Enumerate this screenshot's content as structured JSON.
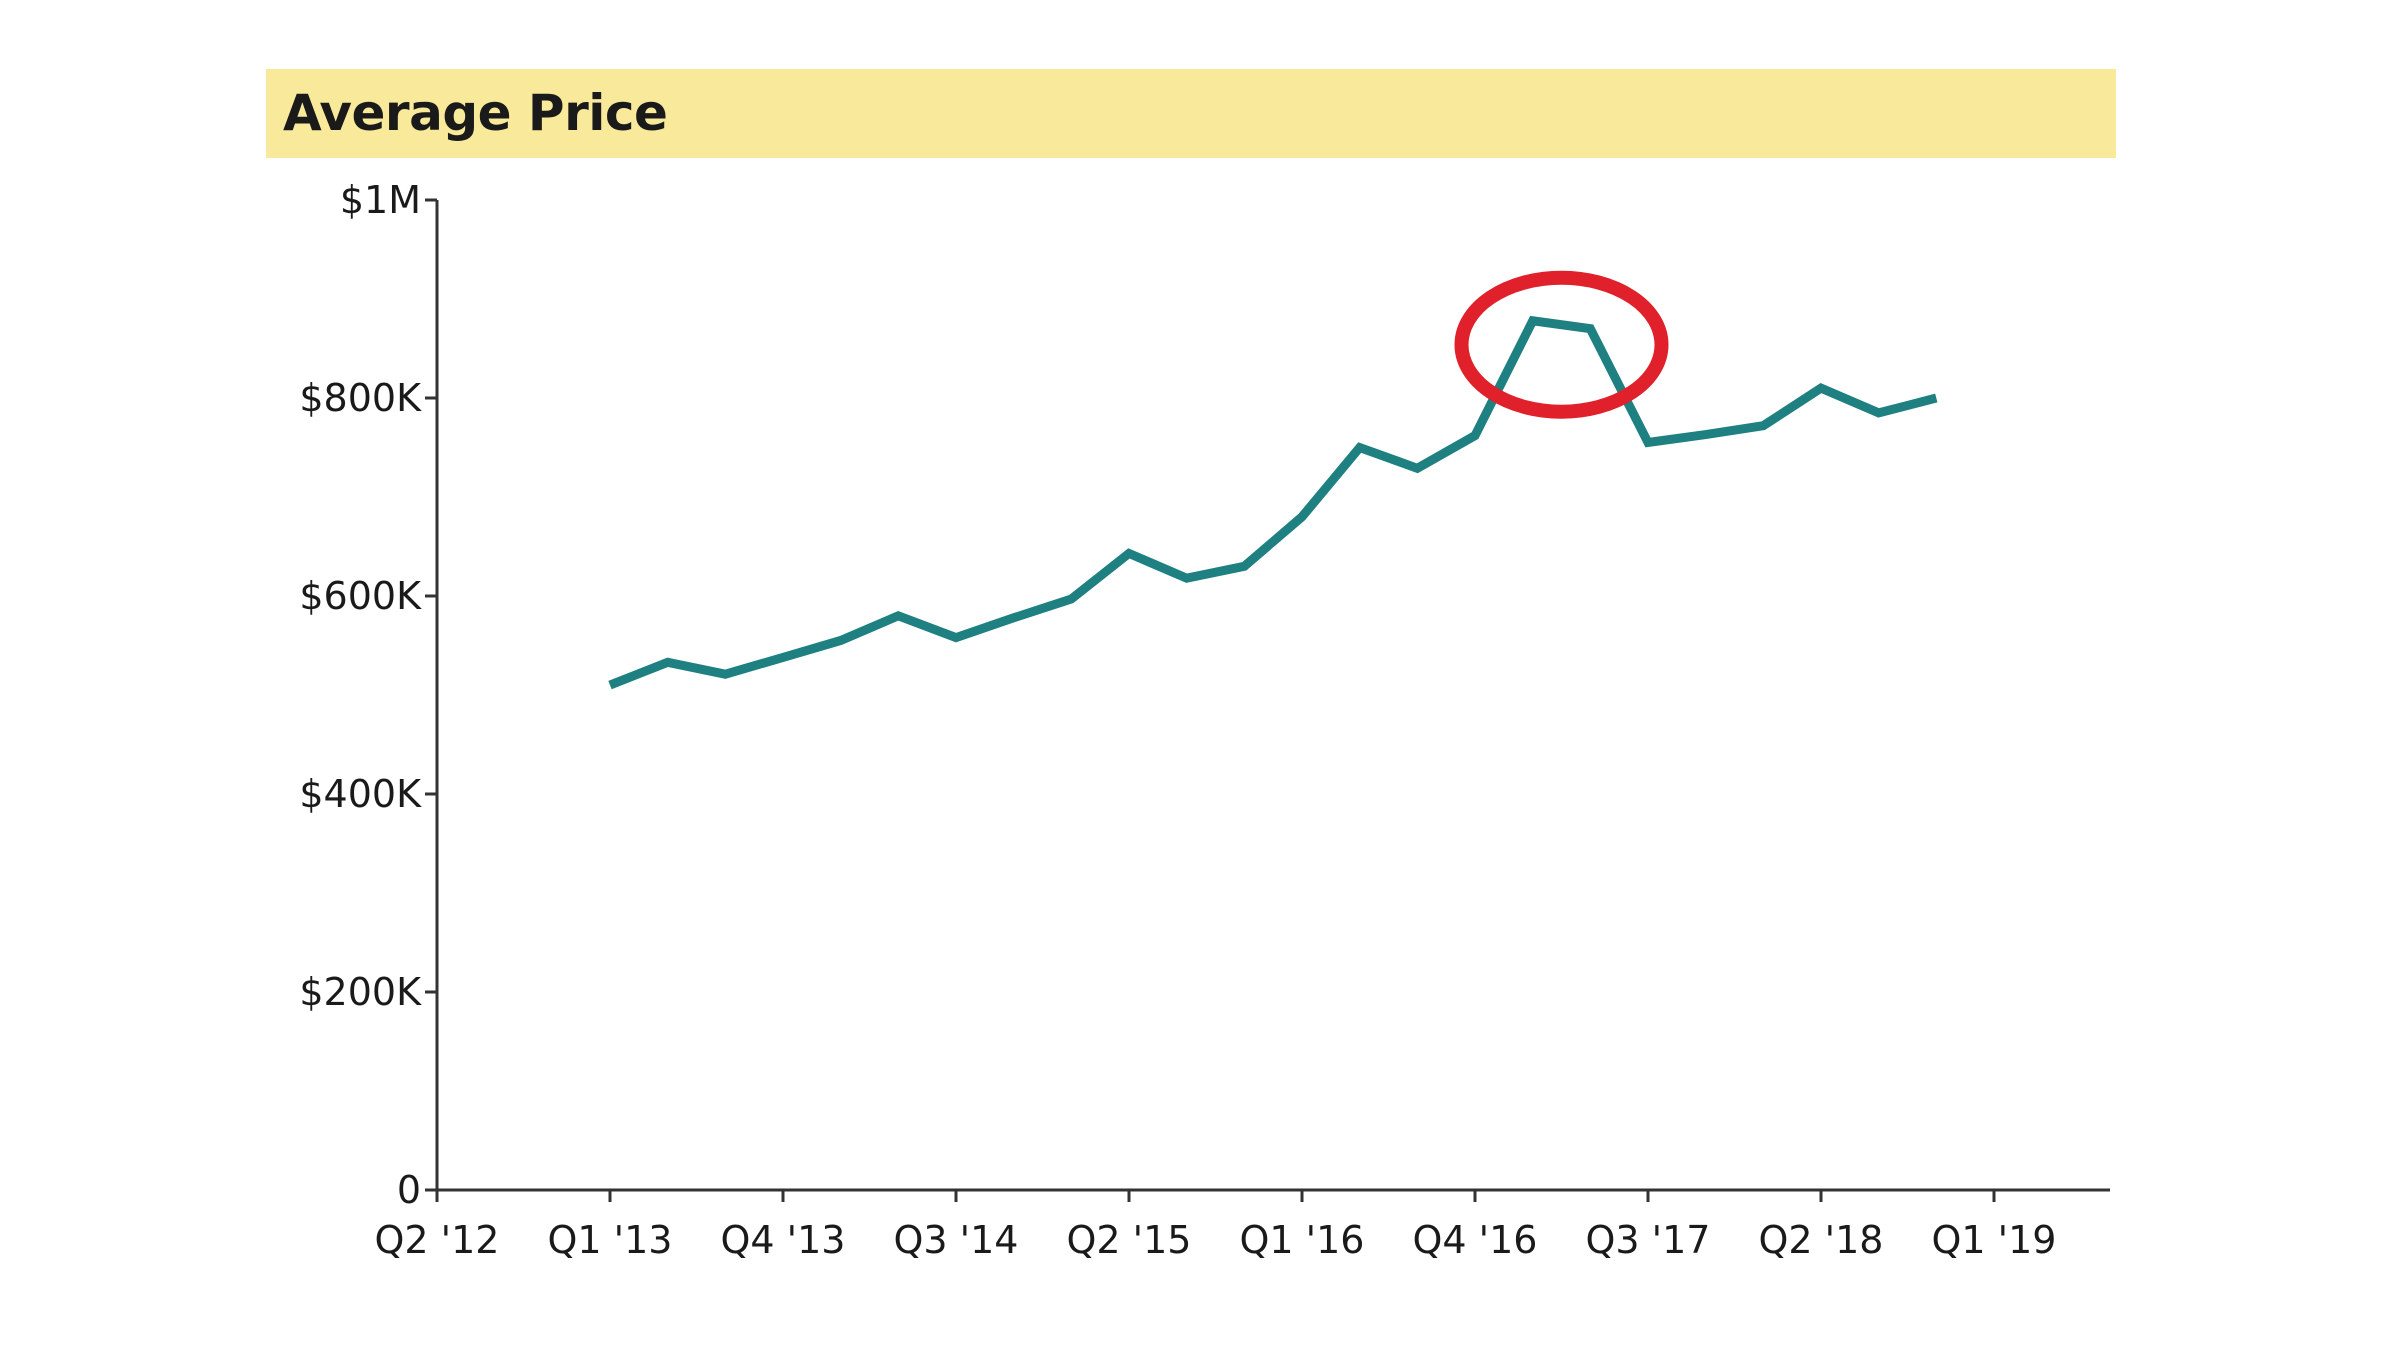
{
  "chart_data": {
    "type": "line",
    "title": "Average Price",
    "xlabel": "",
    "ylabel": "",
    "x_tick_labels": [
      "Q2 '12",
      "Q1 '13",
      "Q4 '13",
      "Q3 '14",
      "Q2 '15",
      "Q1 '16",
      "Q4 '16",
      "Q3 '17",
      "Q2 '18",
      "Q1 '19"
    ],
    "y_tick_labels": [
      "0",
      "$200K",
      "$400K",
      "$600K",
      "$800K",
      "$1M"
    ],
    "y_tick_values": [
      0,
      200000,
      400000,
      600000,
      800000,
      1000000
    ],
    "ylim": [
      0,
      1000000
    ],
    "x_start_quarter": "Q2 '12",
    "series": [
      {
        "name": "Average Price",
        "color": "#1e8080",
        "quarters": [
          "Q1 '13",
          "Q2 '13",
          "Q3 '13",
          "Q4 '13",
          "Q1 '14",
          "Q2 '14",
          "Q3 '14",
          "Q4 '14",
          "Q1 '15",
          "Q2 '15",
          "Q3 '15",
          "Q4 '15",
          "Q1 '16",
          "Q2 '16",
          "Q3 '16",
          "Q4 '16",
          "Q1 '17",
          "Q2 '17",
          "Q3 '17",
          "Q4 '17",
          "Q1 '18",
          "Q2 '18",
          "Q3 '18",
          "Q4 '18"
        ],
        "values": [
          510000,
          533000,
          521000,
          538000,
          555000,
          580000,
          558000,
          578000,
          597000,
          643000,
          618000,
          630000,
          680000,
          750000,
          729000,
          762000,
          878000,
          870000,
          755000,
          763000,
          772000,
          810000,
          785000,
          800000
        ]
      }
    ],
    "annotation": {
      "type": "circle",
      "color": "#e0202a",
      "highlight_quarters": [
        "Q1 '17",
        "Q2 '17"
      ]
    },
    "grid": false,
    "legend": "none"
  }
}
